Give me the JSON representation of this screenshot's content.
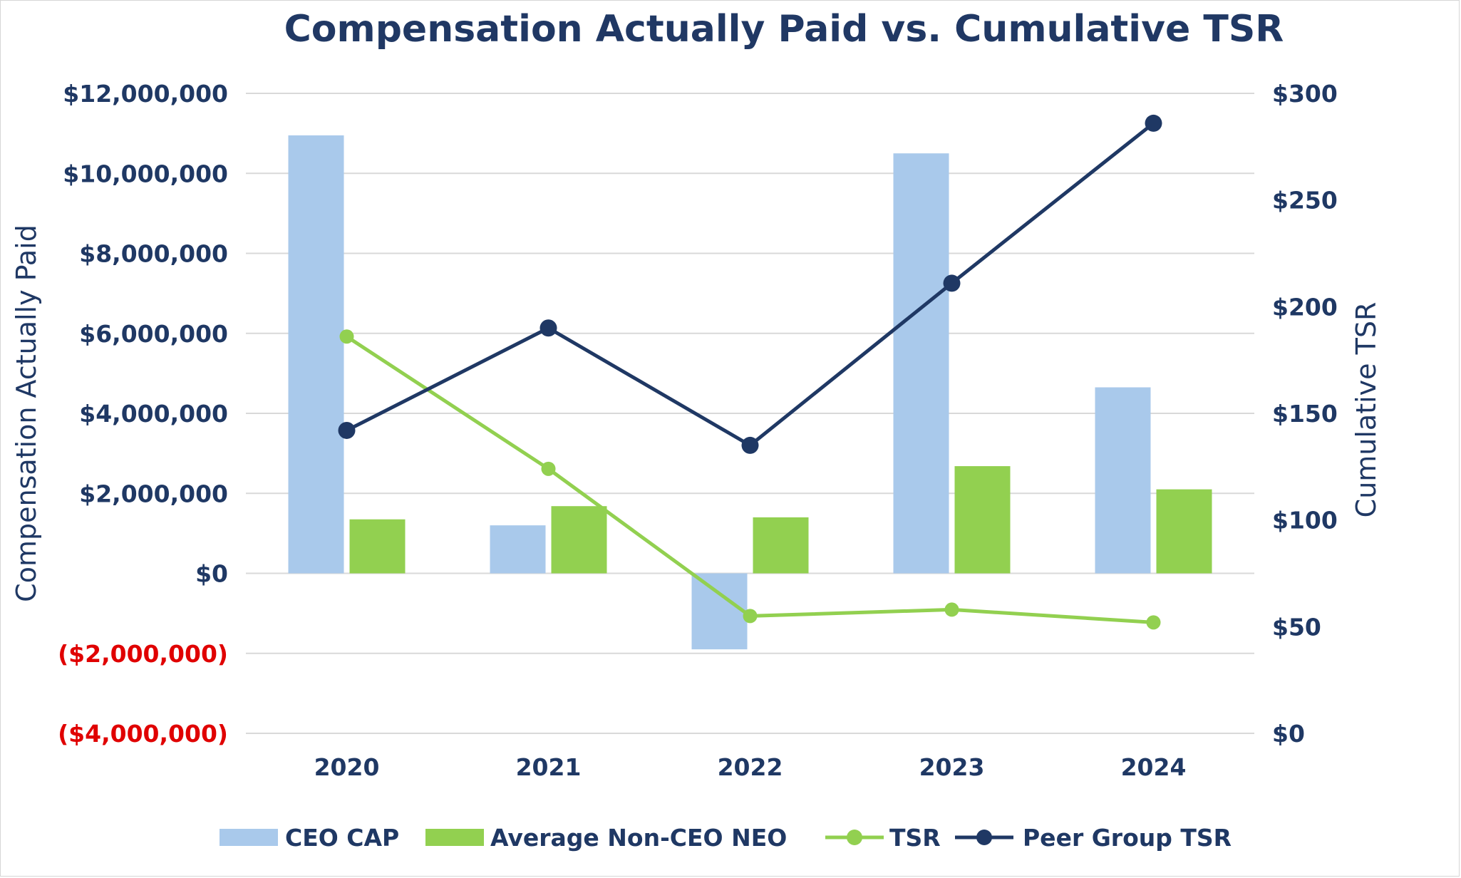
{
  "chart_data": {
    "type": "bar+line",
    "title": "Compensation Actually Paid vs. Cumulative TSR",
    "categories": [
      "2020",
      "2021",
      "2022",
      "2023",
      "2024"
    ],
    "ylabel_left": "Compensation Actually Paid",
    "ylabel_right": "Cumulative TSR",
    "ylim_left": [
      -4000000,
      12000000
    ],
    "ylim_right": [
      0,
      300
    ],
    "left_ticks": [
      {
        "value": 12000000,
        "label": "$12,000,000",
        "negative": false
      },
      {
        "value": 10000000,
        "label": "$10,000,000",
        "negative": false
      },
      {
        "value": 8000000,
        "label": "$8,000,000",
        "negative": false
      },
      {
        "value": 6000000,
        "label": "$6,000,000",
        "negative": false
      },
      {
        "value": 4000000,
        "label": "$4,000,000",
        "negative": false
      },
      {
        "value": 2000000,
        "label": "$2,000,000",
        "negative": false
      },
      {
        "value": 0,
        "label": "$0",
        "negative": false
      },
      {
        "value": -2000000,
        "label": "($2,000,000)",
        "negative": true
      },
      {
        "value": -4000000,
        "label": "($4,000,000)",
        "negative": true
      }
    ],
    "right_ticks": [
      {
        "value": 300,
        "label": "$300"
      },
      {
        "value": 250,
        "label": "$250"
      },
      {
        "value": 200,
        "label": "$200"
      },
      {
        "value": 150,
        "label": "$150"
      },
      {
        "value": 100,
        "label": "$100"
      },
      {
        "value": 50,
        "label": "$50"
      },
      {
        "value": 0,
        "label": "$0"
      }
    ],
    "series": [
      {
        "name": "CEO CAP",
        "type": "bar",
        "axis": "left",
        "color": "#a9c9eb",
        "values": [
          10950000,
          1200000,
          -1900000,
          10500000,
          4650000
        ]
      },
      {
        "name": "Average Non-CEO NEO",
        "type": "bar",
        "axis": "left",
        "color": "#92d050",
        "values": [
          1350000,
          1680000,
          1400000,
          2680000,
          2100000
        ]
      },
      {
        "name": "TSR",
        "type": "line",
        "axis": "right",
        "color": "#92d050",
        "values": [
          186,
          124,
          55,
          58,
          52
        ]
      },
      {
        "name": "Peer Group TSR",
        "type": "line",
        "axis": "right",
        "color": "#1f3864",
        "values": [
          142,
          190,
          135,
          211,
          286
        ]
      }
    ],
    "legend": [
      "CEO CAP",
      "Average Non-CEO NEO",
      "TSR",
      "Peer Group TSR"
    ],
    "legend_position": "bottom",
    "grid": true
  },
  "colors": {
    "title": "#203864",
    "tick": "#1f3864",
    "negative_tick": "#e00000",
    "grid": "#d9d9d9"
  }
}
